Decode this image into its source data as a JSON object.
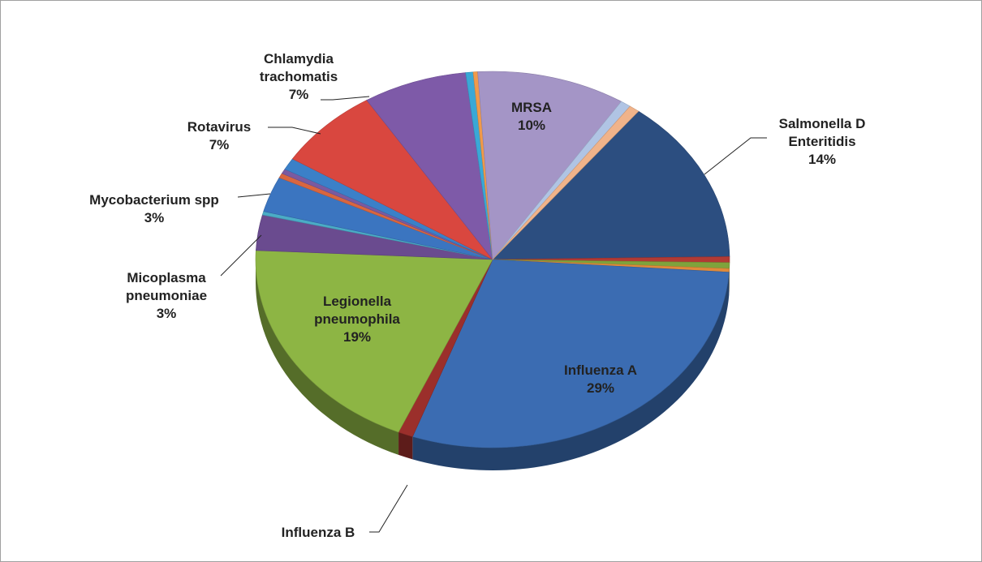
{
  "chart_data": {
    "type": "pie",
    "categories": [
      "Salmonella D Enteritidis",
      null,
      null,
      null,
      "Influenza A",
      "Influenza B",
      "Legionella pneumophila",
      "Micoplasma pneumoniae",
      null,
      "Mycobacterium spp",
      null,
      null,
      null,
      "Rotavirus",
      "Chlamydia trachomatis",
      null,
      null,
      "MRSA",
      null,
      null
    ],
    "values": [
      14,
      0.5,
      0.5,
      0.3,
      29,
      1,
      19,
      3,
      0.3,
      3,
      0.4,
      0.4,
      1,
      7,
      7,
      0.5,
      0.3,
      10,
      0.7,
      0.7
    ],
    "value_labels": [
      "14%",
      null,
      null,
      null,
      "29%",
      null,
      "19%",
      "3%",
      null,
      "3%",
      null,
      null,
      null,
      "7%",
      "7%",
      null,
      null,
      "10%",
      null,
      null
    ],
    "colors": [
      "#2c4e80",
      "#b23a34",
      "#7fa33c",
      "#e08a3a",
      "#3b6cb2",
      "#9b2f2b",
      "#8db544",
      "#6a4b8f",
      "#4bacc6",
      "#3b75c0",
      "#d9663f",
      "#7a5aa0",
      "#3b80c8",
      "#d9473f",
      "#7e5aa8",
      "#3aa8d6",
      "#f09a4a",
      "#a495c6",
      "#b0c4e4",
      "#f0b38a"
    ]
  }
}
